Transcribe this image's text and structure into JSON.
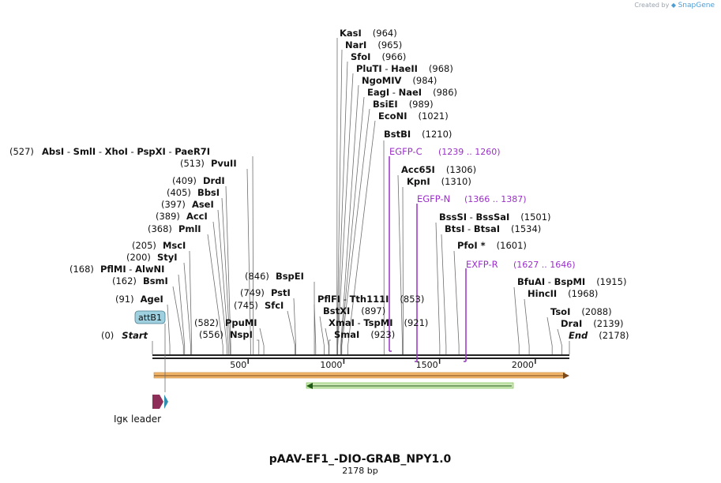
{
  "credit": {
    "created_by": "Created by",
    "brand": "SnapGene"
  },
  "map": {
    "title": "pAAV-EF1_-DIO-GRAB_NPY1.0",
    "length_label": "2178 bp",
    "bp_min": 0,
    "bp_max": 2178,
    "ticks": [
      {
        "pos": 500,
        "label": "500"
      },
      {
        "pos": 1000,
        "label": "1000"
      },
      {
        "pos": 1500,
        "label": "1500"
      },
      {
        "pos": 2000,
        "label": "2000"
      }
    ],
    "enzyme_rows": [
      {
        "items": [
          {
            "name": "KasI",
            "pos": "(964)"
          }
        ]
      },
      {
        "items": [
          {
            "name": "NarI",
            "pos": "(965)"
          }
        ]
      },
      {
        "items": [
          {
            "name": "SfoI",
            "pos": "(966)"
          }
        ]
      },
      {
        "items": [
          {
            "name": "PluTI",
            "sep": " - ",
            "name2": "HaeII",
            "pos": "(968)"
          }
        ]
      },
      {
        "items": [
          {
            "name": "NgoMIV",
            "pos": "(984)"
          }
        ]
      },
      {
        "items": [
          {
            "name": "EagI",
            "sep": " - ",
            "name2": "NaeI",
            "pos": "(986)"
          }
        ]
      },
      {
        "items": [
          {
            "name": "BsiEI",
            "pos": "(989)"
          }
        ]
      },
      {
        "items": [
          {
            "name": "EcoNI",
            "pos": "(1021)"
          }
        ]
      },
      {
        "items": [
          {
            "name": "BstBI",
            "pos": "(1210)"
          }
        ]
      },
      {
        "items": [
          {
            "pos": "(527)",
            "name": "AbsI",
            "sep": " - ",
            "name2": "SmlI",
            "sep2": " - ",
            "name3": "XhoI",
            "sep3": " - ",
            "name4": "PspXI",
            "sep4": " - ",
            "name5": "PaeR7I"
          }
        ]
      },
      {
        "items": [
          {
            "pos": "(513)",
            "name": "PvuII"
          }
        ]
      },
      {
        "items": [
          {
            "pos": "(409)",
            "name": "DrdI"
          }
        ]
      },
      {
        "items": [
          {
            "pos": "(405)",
            "name": "BbsI"
          }
        ]
      },
      {
        "items": [
          {
            "pos": "(397)",
            "name": "AseI"
          }
        ]
      },
      {
        "items": [
          {
            "pos": "(389)",
            "name": "AccI"
          }
        ]
      },
      {
        "items": [
          {
            "pos": "(368)",
            "name": "PmlI"
          }
        ]
      },
      {
        "items": [
          {
            "pos": "(205)",
            "name": "MscI"
          }
        ]
      },
      {
        "items": [
          {
            "pos": "(200)",
            "name": "StyI"
          }
        ]
      },
      {
        "items": [
          {
            "pos": "(168)",
            "name": "PflMI",
            "sep": " - ",
            "name2": "AlwNI"
          }
        ]
      },
      {
        "items": [
          {
            "pos": "(162)",
            "name": "BsmI"
          }
        ]
      },
      {
        "items": [
          {
            "pos": "(91)",
            "name": "AgeI"
          }
        ]
      },
      {
        "items": [
          {
            "pos": "(582)",
            "name": "PpuMI"
          }
        ]
      },
      {
        "items": [
          {
            "pos": "(556)",
            "name": "NspI"
          }
        ]
      },
      {
        "items": [
          {
            "pos": "(846)",
            "name": "BspEI"
          }
        ]
      },
      {
        "items": [
          {
            "pos": "(749)",
            "name": "PstI"
          }
        ]
      },
      {
        "items": [
          {
            "pos": "(745)",
            "name": "SfcI"
          }
        ]
      },
      {
        "items": [
          {
            "name": "PflFI",
            "sep": " - ",
            "name2": "Tth111I",
            "pos": "(853)"
          }
        ]
      },
      {
        "items": [
          {
            "name": "BstXI",
            "pos": "(897)"
          }
        ]
      },
      {
        "items": [
          {
            "name": "XmaI",
            "sep": " - ",
            "name2": "TspMI",
            "pos": "(921)"
          }
        ]
      },
      {
        "items": [
          {
            "name": "SmaI",
            "pos": "(923)"
          }
        ]
      },
      {
        "items": [
          {
            "name": "Acc65I",
            "pos": "(1306)"
          }
        ]
      },
      {
        "items": [
          {
            "name": "KpnI",
            "pos": "(1310)"
          }
        ]
      },
      {
        "items": [
          {
            "name": "BssSI",
            "sep": " - ",
            "name2": "BssSaI",
            "pos": "(1501)"
          }
        ]
      },
      {
        "items": [
          {
            "name": "BtsI",
            "sep": " - ",
            "name2": "BtsaI",
            "pos": "(1534)"
          }
        ]
      },
      {
        "items": [
          {
            "name": "PfoI *",
            "pos": "(1601)"
          }
        ]
      },
      {
        "items": [
          {
            "name": "BfuAI",
            "sep": " - ",
            "name2": "BspMI",
            "pos": "(1915)"
          }
        ]
      },
      {
        "items": [
          {
            "name": "HincII",
            "pos": "(1968)"
          }
        ]
      },
      {
        "items": [
          {
            "name": "TsoI",
            "pos": "(2088)"
          }
        ]
      },
      {
        "items": [
          {
            "name": "DraI",
            "pos": "(2139)"
          }
        ]
      },
      {
        "items": [
          {
            "pos": "(0)",
            "name": "Start"
          }
        ]
      },
      {
        "items": [
          {
            "name": "End",
            "pos": "(2178)"
          }
        ]
      }
    ],
    "primers": [
      {
        "name": "EGFP-C",
        "range": "(1239 .. 1260)"
      },
      {
        "name": "EGFP-N",
        "range": "(1366 .. 1387)"
      },
      {
        "name": "EXFP-R",
        "range": "(1627 .. 1646)"
      }
    ],
    "features": {
      "attb1": "attB1",
      "igk": "Igκ leader"
    },
    "colors": {
      "primer": "#9b30c8",
      "orange_feature": "#f2b66a",
      "green_feature": "#6ab83c",
      "attb1_fill": "#9ed0df",
      "igk_fill": "#8e2f5a",
      "teal_fill": "#2f8fb0"
    }
  }
}
